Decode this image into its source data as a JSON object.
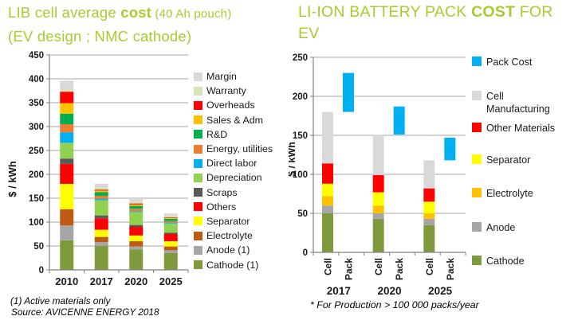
{
  "left": {
    "title_pre": "LIB cell average ",
    "title_bold": "cost",
    "title_post": " (40 Ah pouch)",
    "title_line2": "(EV design ; NMC cathode)",
    "footnote1": "(1) Active materials only",
    "footnote2": "Source: AVICENNE ENERGY 2018"
  },
  "right": {
    "title_pre": "LI-ION BATTERY PACK ",
    "title_bold": "COST",
    "title_post": " FOR EV",
    "footnote": "* For  Production > 100 000 packs/year"
  },
  "colors": {
    "title_green": "#A9CB31",
    "grid": "#A6A6A6",
    "axis": "#808080",
    "tick_text": "#1a1a1a"
  },
  "chart_data": [
    {
      "id": "lib-cell-cost",
      "type": "bar",
      "stacked": true,
      "title": "LIB cell average cost (40 Ah pouch) (EV design ; NMC cathode)",
      "ylabel": "$ / kWh",
      "ylim": [
        0,
        450
      ],
      "ytick_step": 50,
      "grid": true,
      "legend_position": "right",
      "categories": [
        "2010",
        "2017",
        "2020",
        "2025"
      ],
      "series_note": "bottom-to-top stacking order; values in $/kWh",
      "series": [
        {
          "name": "Cathode (1)",
          "color": "#7F9A3D",
          "values": [
            62,
            50,
            43,
            35
          ]
        },
        {
          "name": "Anode (1)",
          "color": "#A6A6A6",
          "values": [
            31,
            8,
            6,
            6
          ]
        },
        {
          "name": "Electrolyte",
          "color": "#C05A11",
          "values": [
            34,
            11,
            11,
            8
          ]
        },
        {
          "name": "Separator",
          "color": "#FFFF00",
          "values": [
            53,
            15,
            12,
            11
          ]
        },
        {
          "name": "Others",
          "color": "#FF0000",
          "values": [
            42,
            24,
            18,
            15
          ]
        },
        {
          "name": "Scraps",
          "color": "#595959",
          "values": [
            11,
            6,
            4,
            3
          ]
        },
        {
          "name": "Depreciation",
          "color": "#92D050",
          "values": [
            33,
            32,
            27,
            19
          ]
        },
        {
          "name": "Direct labor",
          "color": "#00B0F0",
          "values": [
            22,
            3,
            2,
            2
          ]
        },
        {
          "name": "Energy, utilities",
          "color": "#ED7D31",
          "values": [
            17,
            6,
            5,
            3
          ]
        },
        {
          "name": "R&D",
          "color": "#00B050",
          "values": [
            22,
            8,
            6,
            5
          ]
        },
        {
          "name": "Sales & Adm",
          "color": "#FFC000",
          "values": [
            22,
            3,
            3,
            2
          ]
        },
        {
          "name": "Overheads",
          "color": "#FF0000",
          "values": [
            24,
            2,
            2,
            1
          ]
        },
        {
          "name": "Warranty",
          "color": "#D6E4BC",
          "values": [
            5,
            5,
            4,
            3
          ]
        },
        {
          "name": "Margin",
          "color": "#D9D9D9",
          "values": [
            18,
            7,
            7,
            5
          ]
        }
      ],
      "totals": [
        396,
        180,
        150,
        118
      ]
    },
    {
      "id": "battery-pack-cost",
      "type": "bar",
      "stacked": true,
      "title": "LI-ION BATTERY PACK COST FOR EV",
      "ylabel": "$ / kWh",
      "ylim": [
        0,
        250
      ],
      "ytick_step": 50,
      "grid": true,
      "legend_position": "right",
      "categories": [
        "2017",
        "2020",
        "2025"
      ],
      "sub_categories": [
        "Cell",
        "Pack"
      ],
      "cell_series_note": "bottom-to-top stacking of Cell bar; values in $/kWh",
      "cell_series": [
        {
          "name": "Cathode",
          "color": "#7F9A3D",
          "values": [
            50,
            43,
            35
          ]
        },
        {
          "name": "Anode",
          "color": "#A6A6A6",
          "values": [
            10,
            7,
            8
          ]
        },
        {
          "name": "Electrolyte",
          "color": "#FFC000",
          "values": [
            12,
            10,
            7
          ]
        },
        {
          "name": "Separator",
          "color": "#FFFF00",
          "values": [
            16,
            17,
            15
          ]
        },
        {
          "name": "Other Materials",
          "color": "#FF0000",
          "values": [
            26,
            22,
            17
          ]
        },
        {
          "name": "Cell Manufacturing",
          "color": "#D9D9D9",
          "values": [
            66,
            52,
            36
          ]
        }
      ],
      "cell_totals": [
        180,
        151,
        118
      ],
      "pack_series": {
        "name": "Pack Cost",
        "color": "#00B0F0",
        "base": [
          180,
          151,
          118
        ],
        "top": [
          230,
          187,
          147
        ]
      },
      "legend": [
        {
          "label": "Pack Cost",
          "color": "#00B0F0"
        },
        {
          "label": "Cell Manufacturing",
          "color": "#D9D9D9"
        },
        {
          "label": "Other Materials",
          "color": "#FF0000"
        },
        {
          "label": "Separator",
          "color": "#FFFF00"
        },
        {
          "label": "Electrolyte",
          "color": "#FFC000"
        },
        {
          "label": "Anode",
          "color": "#A6A6A6"
        },
        {
          "label": "Cathode",
          "color": "#7F9A3D"
        }
      ]
    }
  ]
}
